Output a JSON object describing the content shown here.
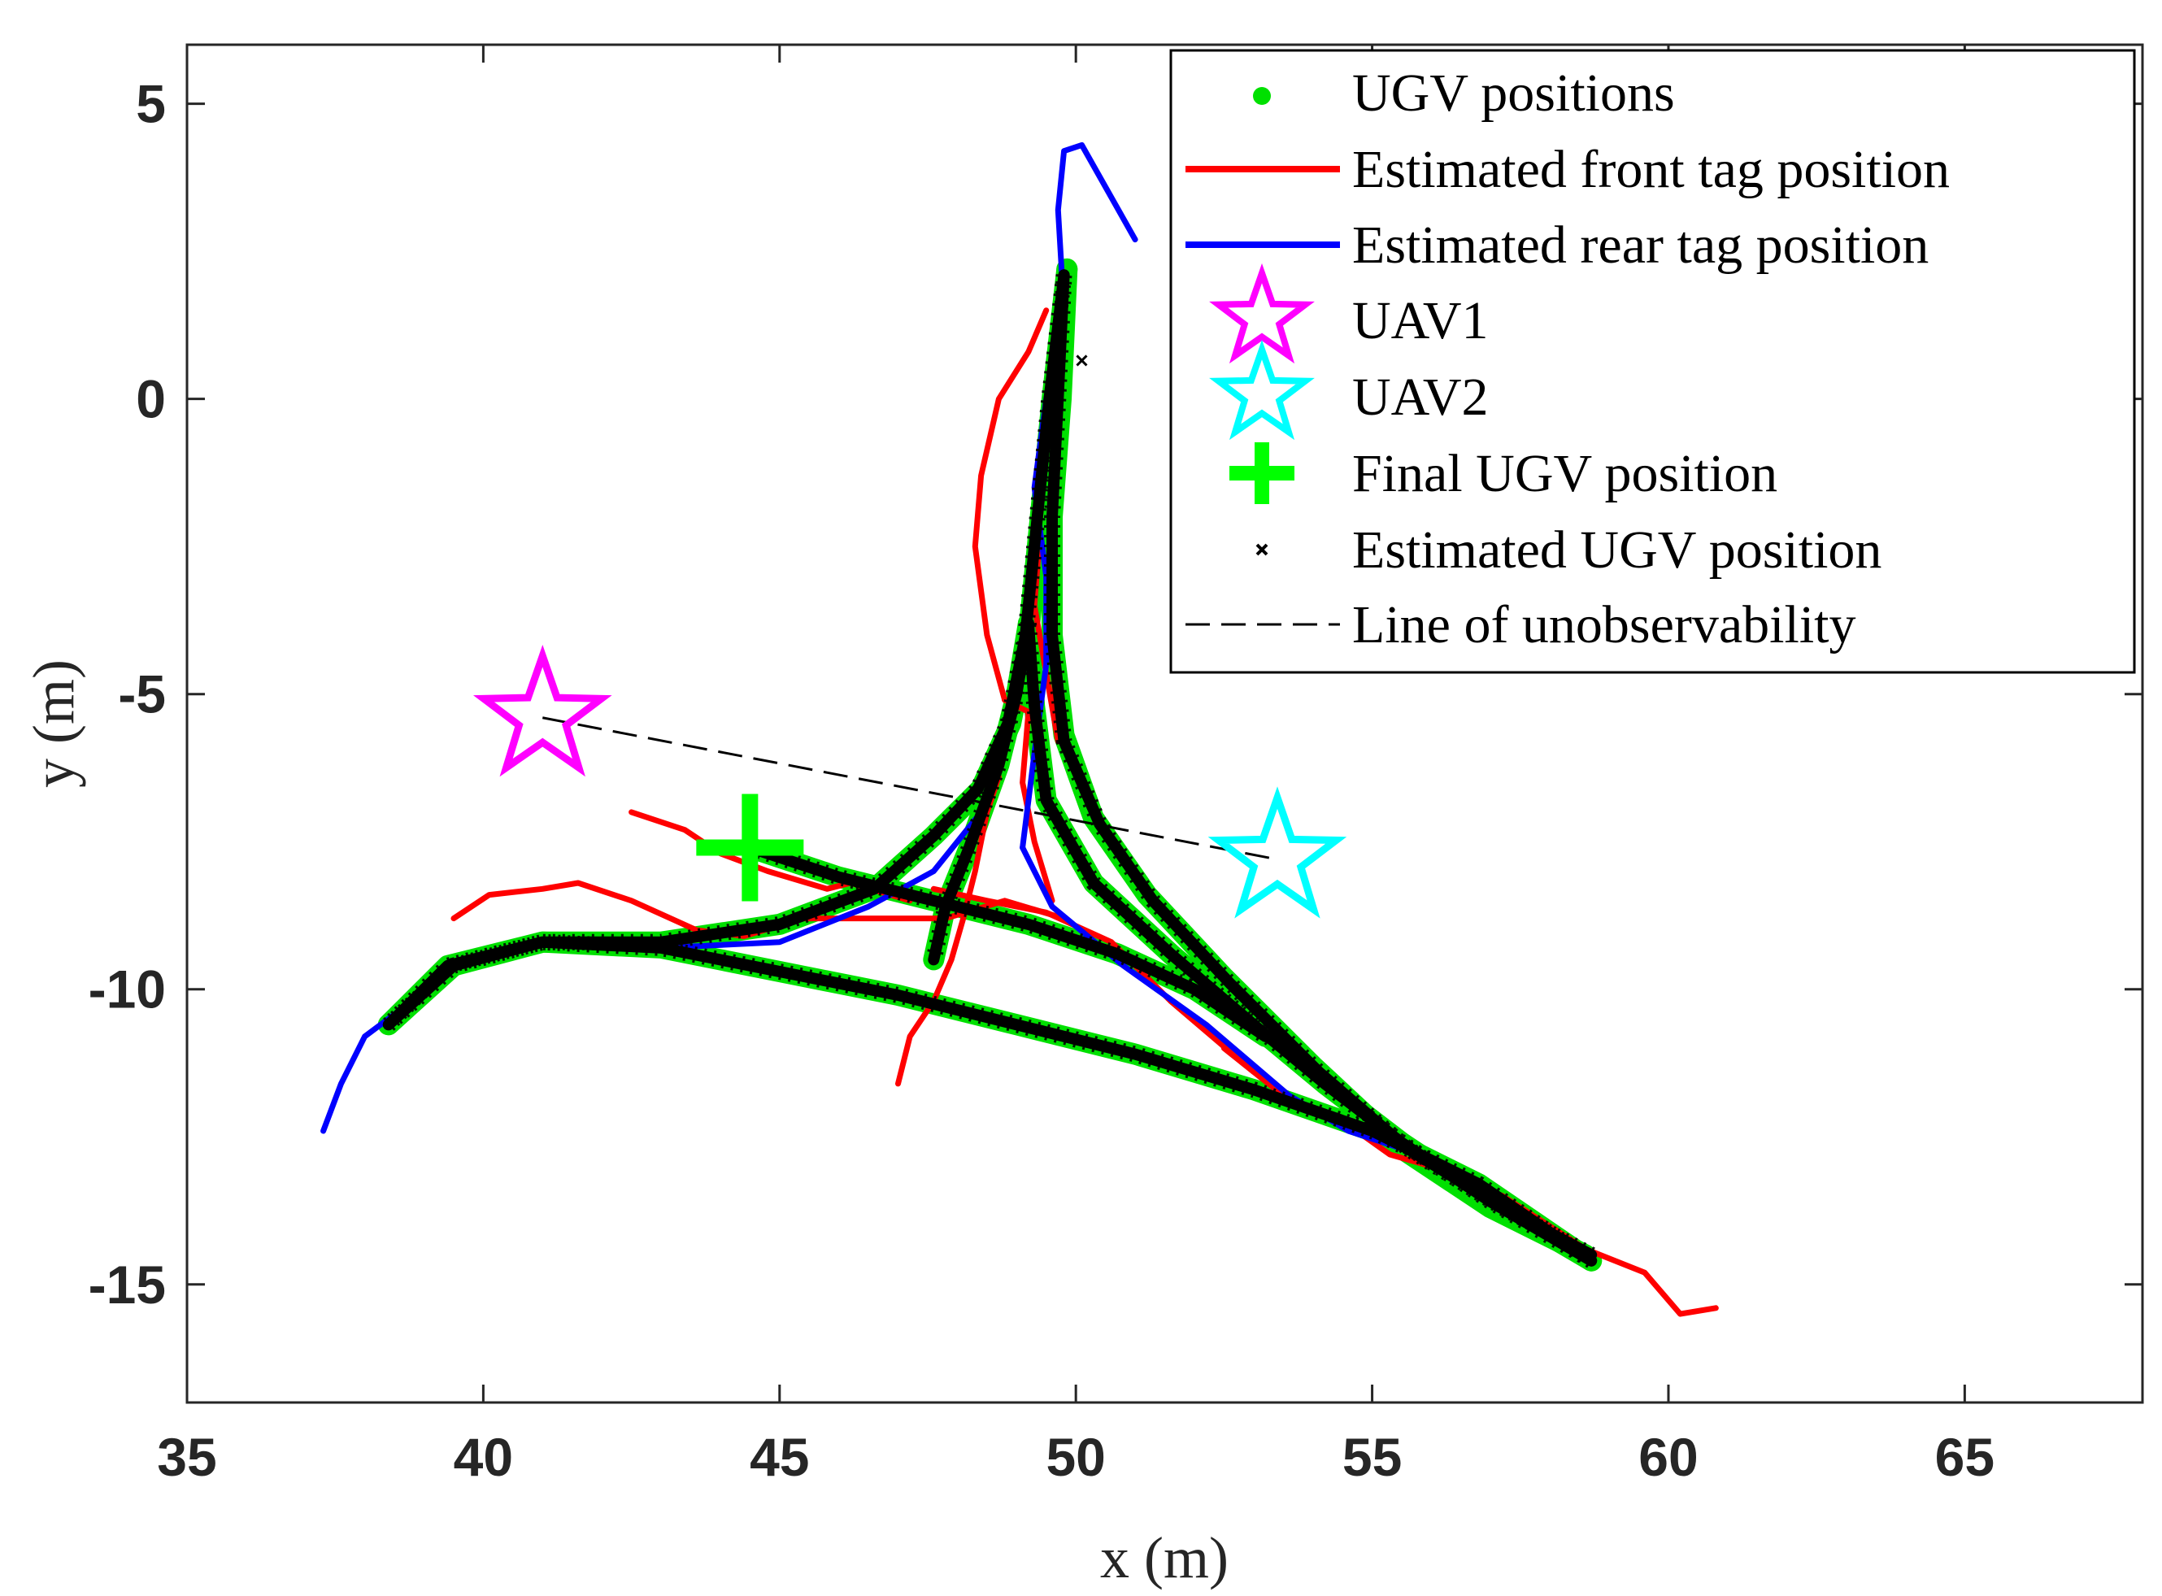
{
  "chart_data": {
    "type": "scatter",
    "title": "",
    "xlabel": "x (m)",
    "ylabel": "y (m)",
    "xlim": [
      35,
      68
    ],
    "ylim": [
      -17,
      6
    ],
    "x_ticks": [
      35,
      40,
      45,
      50,
      55,
      60,
      65
    ],
    "x_tick_labels": [
      "35",
      "40",
      "45",
      "50",
      "55",
      "60",
      "65"
    ],
    "y_ticks": [
      5,
      0,
      -5,
      -10,
      -15
    ],
    "y_tick_labels": [
      "5",
      "0",
      "-5",
      "-10",
      "-15"
    ],
    "grid": false,
    "legend_position": "top-right",
    "legend": [
      {
        "label": "UGV positions",
        "marker": "dot",
        "color": "#00e000"
      },
      {
        "label": "Estimated front tag position",
        "marker": "line",
        "color": "#ff0000"
      },
      {
        "label": "Estimated rear tag position",
        "marker": "line",
        "color": "#0000ff"
      },
      {
        "label": "UAV1",
        "marker": "star",
        "color": "#ff00ff"
      },
      {
        "label": "UAV2",
        "marker": "star",
        "color": "#00ffff"
      },
      {
        "label": "Final UGV position",
        "marker": "plus",
        "color": "#00ff00"
      },
      {
        "label": "Estimated UGV position",
        "marker": "x",
        "color": "#000000"
      },
      {
        "label": "Line of unobservability",
        "marker": "dashed",
        "color": "#000000"
      }
    ],
    "series": [
      {
        "name": "UGV positions",
        "color": "#00e000",
        "paths": [
          [
            [
              58.6,
              -14.5
            ],
            [
              57,
              -13.7
            ],
            [
              55.5,
              -12.7
            ],
            [
              54,
              -11.3
            ],
            [
              52.5,
              -9.8
            ],
            [
              51.2,
              -8.4
            ],
            [
              50.3,
              -7.1
            ],
            [
              49.8,
              -5.7
            ],
            [
              49.6,
              -4
            ],
            [
              49.6,
              -2
            ],
            [
              49.75,
              0
            ],
            [
              49.85,
              2.2
            ]
          ],
          [
            [
              49.85,
              2.2
            ],
            [
              49.6,
              0
            ],
            [
              49.4,
              -2
            ],
            [
              49.2,
              -4
            ],
            [
              48.9,
              -5.5
            ],
            [
              48.4,
              -6.6
            ],
            [
              47.6,
              -7.4
            ],
            [
              46.6,
              -8.3
            ],
            [
              45,
              -8.9
            ],
            [
              43,
              -9.2
            ],
            [
              41,
              -9.2
            ],
            [
              39.4,
              -9.6
            ],
            [
              38.4,
              -10.6
            ]
          ],
          [
            [
              38.4,
              -10.6
            ],
            [
              39.5,
              -9.6
            ],
            [
              41,
              -9.2
            ],
            [
              43,
              -9.3
            ],
            [
              45,
              -9.7
            ],
            [
              47,
              -10.1
            ],
            [
              49,
              -10.6
            ],
            [
              51,
              -11.1
            ],
            [
              53,
              -11.7
            ],
            [
              55,
              -12.4
            ],
            [
              56.8,
              -13.3
            ],
            [
              58.7,
              -14.6
            ]
          ],
          [
            [
              58.7,
              -14.6
            ],
            [
              57,
              -13.6
            ],
            [
              55.5,
              -12.6
            ],
            [
              54.2,
              -11.6
            ],
            [
              53,
              -10.6
            ],
            [
              51.6,
              -9.4
            ],
            [
              50.3,
              -8.2
            ],
            [
              49.5,
              -6.8
            ],
            [
              49.3,
              -5.2
            ],
            [
              49.2,
              -3.8
            ]
          ],
          [
            [
              49.2,
              -3.8
            ],
            [
              49,
              -5
            ],
            [
              48.7,
              -6.2
            ],
            [
              48.2,
              -7.6
            ],
            [
              47.8,
              -8.6
            ],
            [
              47.6,
              -9.5
            ]
          ],
          [
            [
              44.5,
              -7.6
            ],
            [
              46,
              -8.1
            ],
            [
              47.6,
              -8.5
            ],
            [
              49.2,
              -8.9
            ],
            [
              50.7,
              -9.4
            ],
            [
              52,
              -10
            ],
            [
              53.2,
              -10.8
            ]
          ]
        ]
      },
      {
        "name": "Estimated front tag position",
        "color": "#ff0000",
        "paths": [
          [
            [
              60.8,
              -15.4
            ],
            [
              60.2,
              -15.5
            ],
            [
              59.6,
              -14.8
            ],
            [
              58.6,
              -14.4
            ],
            [
              57.2,
              -13.5
            ],
            [
              56,
              -13
            ],
            [
              55.3,
              -12.8
            ],
            [
              54.6,
              -12.3
            ],
            [
              53.5,
              -11.8
            ],
            [
              52.5,
              -11
            ]
          ],
          [
            [
              53,
              -11.4
            ],
            [
              51.6,
              -10.2
            ],
            [
              50.6,
              -9.2
            ],
            [
              49.5,
              -8.7
            ],
            [
              48.5,
              -8.5
            ],
            [
              47.6,
              -8.3
            ]
          ],
          [
            [
              47,
              -11.6
            ],
            [
              47.2,
              -10.8
            ],
            [
              47.6,
              -10.2
            ],
            [
              47.9,
              -9.5
            ],
            [
              48.1,
              -8.8
            ],
            [
              48.3,
              -8
            ],
            [
              48.5,
              -7
            ],
            [
              48.7,
              -6.4
            ]
          ],
          [
            [
              47.2,
              -8.5
            ],
            [
              46.2,
              -8.2
            ],
            [
              45.8,
              -8.3
            ],
            [
              44.8,
              -8
            ],
            [
              44,
              -7.7
            ],
            [
              43.4,
              -7.3
            ],
            [
              42.5,
              -7
            ]
          ],
          [
            [
              39.5,
              -8.8
            ],
            [
              40.1,
              -8.4
            ],
            [
              41,
              -8.3
            ],
            [
              41.6,
              -8.2
            ],
            [
              42.5,
              -8.5
            ],
            [
              43.6,
              -9
            ],
            [
              44.4,
              -9.1
            ],
            [
              45.4,
              -8.8
            ],
            [
              46.4,
              -8.8
            ],
            [
              47.8,
              -8.8
            ],
            [
              48.8,
              -8.5
            ],
            [
              49.8,
              -8.8
            ]
          ],
          [
            [
              48.8,
              -5.1
            ],
            [
              48.5,
              -4
            ],
            [
              48.3,
              -2.5
            ],
            [
              48.4,
              -1.3
            ],
            [
              48.7,
              0
            ],
            [
              49.2,
              0.8
            ],
            [
              49.5,
              1.5
            ]
          ],
          [
            [
              48.8,
              -5.1
            ],
            [
              49.2,
              -5.3
            ],
            [
              49.1,
              -6.5
            ],
            [
              49.3,
              -7.5
            ],
            [
              49.6,
              -8.5
            ]
          ],
          [
            [
              49.5,
              -3.2
            ],
            [
              49.6,
              -4.2
            ],
            [
              49.7,
              -5.8
            ],
            [
              49.3,
              -3.5
            ],
            [
              49.4,
              -2.2
            ]
          ]
        ]
      },
      {
        "name": "Estimated rear tag position",
        "color": "#0000ff",
        "paths": [
          [
            [
              37.3,
              -12.4
            ],
            [
              37.6,
              -11.6
            ],
            [
              38,
              -10.8
            ],
            [
              38.8,
              -10.2
            ],
            [
              39.6,
              -9.5
            ],
            [
              41,
              -9.2
            ],
            [
              43,
              -9.3
            ],
            [
              45,
              -9.2
            ],
            [
              46.5,
              -8.6
            ],
            [
              47.6,
              -8
            ],
            [
              48.4,
              -7
            ]
          ],
          [
            [
              58.5,
              -14.5
            ],
            [
              57,
              -13.4
            ],
            [
              55.8,
              -12.8
            ],
            [
              54.6,
              -12.4
            ],
            [
              53.6,
              -11.8
            ],
            [
              52.2,
              -10.6
            ],
            [
              50.8,
              -9.6
            ],
            [
              49.6,
              -8.6
            ],
            [
              49.1,
              -7.6
            ]
          ],
          [
            [
              49.1,
              -7.6
            ],
            [
              49.3,
              -6
            ],
            [
              49.5,
              -4.5
            ],
            [
              49.5,
              -3
            ],
            [
              49.3,
              -1.5
            ],
            [
              49.5,
              0
            ],
            [
              49.8,
              1.5
            ],
            [
              49.7,
              3.2
            ],
            [
              49.8,
              4.2
            ],
            [
              50.1,
              4.3
            ],
            [
              51,
              2.7
            ]
          ]
        ]
      },
      {
        "name": "Estimated UGV position",
        "color": "#000000",
        "paths": [
          [
            [
              58.7,
              -14.5
            ],
            [
              57.2,
              -13.7
            ],
            [
              55.6,
              -12.7
            ],
            [
              54.1,
              -11.4
            ],
            [
              52.6,
              -9.9
            ],
            [
              51.3,
              -8.5
            ],
            [
              50.4,
              -7.2
            ],
            [
              49.8,
              -5.8
            ],
            [
              49.6,
              -4
            ],
            [
              49.6,
              -2
            ],
            [
              49.7,
              0
            ],
            [
              49.8,
              2.1
            ]
          ],
          [
            [
              49.8,
              2.1
            ],
            [
              49.55,
              0
            ],
            [
              49.35,
              -2
            ],
            [
              49.15,
              -4
            ],
            [
              48.85,
              -5.5
            ],
            [
              48.35,
              -6.6
            ],
            [
              47.6,
              -7.4
            ],
            [
              46.6,
              -8.3
            ],
            [
              45,
              -8.9
            ],
            [
              43,
              -9.2
            ],
            [
              41,
              -9.2
            ],
            [
              39.4,
              -9.6
            ],
            [
              38.4,
              -10.6
            ]
          ],
          [
            [
              38.4,
              -10.6
            ],
            [
              39.5,
              -9.6
            ],
            [
              41,
              -9.2
            ],
            [
              43,
              -9.3
            ],
            [
              45,
              -9.7
            ],
            [
              47,
              -10.1
            ],
            [
              49,
              -10.6
            ],
            [
              51,
              -11.1
            ],
            [
              53,
              -11.7
            ],
            [
              55,
              -12.4
            ],
            [
              56.8,
              -13.3
            ],
            [
              58.7,
              -14.6
            ]
          ],
          [
            [
              58.7,
              -14.6
            ],
            [
              57,
              -13.6
            ],
            [
              55.5,
              -12.6
            ],
            [
              54.2,
              -11.6
            ],
            [
              53,
              -10.6
            ],
            [
              51.6,
              -9.4
            ],
            [
              50.3,
              -8.2
            ],
            [
              49.5,
              -6.8
            ],
            [
              49.3,
              -5.2
            ],
            [
              49.2,
              -3.8
            ]
          ],
          [
            [
              49.2,
              -3.8
            ],
            [
              49,
              -5
            ],
            [
              48.7,
              -6.2
            ],
            [
              48.2,
              -7.6
            ],
            [
              47.8,
              -8.6
            ],
            [
              47.6,
              -9.5
            ]
          ],
          [
            [
              44.5,
              -7.6
            ],
            [
              46,
              -8.1
            ],
            [
              47.6,
              -8.5
            ],
            [
              49.2,
              -8.9
            ],
            [
              50.7,
              -9.4
            ],
            [
              52,
              -10
            ],
            [
              53.2,
              -10.8
            ]
          ]
        ],
        "points": [
          [
            50.1,
            0.65
          ]
        ]
      }
    ],
    "uav1": {
      "x": 41,
      "y": -5.4,
      "color": "#ff00ff"
    },
    "uav2": {
      "x": 53.4,
      "y": -7.8,
      "color": "#00ffff"
    },
    "final_ugv_position": {
      "x": 44.5,
      "y": -7.6,
      "color": "#00ff00"
    },
    "line_of_unobservability": [
      [
        41,
        -5.4
      ],
      [
        53.4,
        -7.8
      ]
    ]
  }
}
